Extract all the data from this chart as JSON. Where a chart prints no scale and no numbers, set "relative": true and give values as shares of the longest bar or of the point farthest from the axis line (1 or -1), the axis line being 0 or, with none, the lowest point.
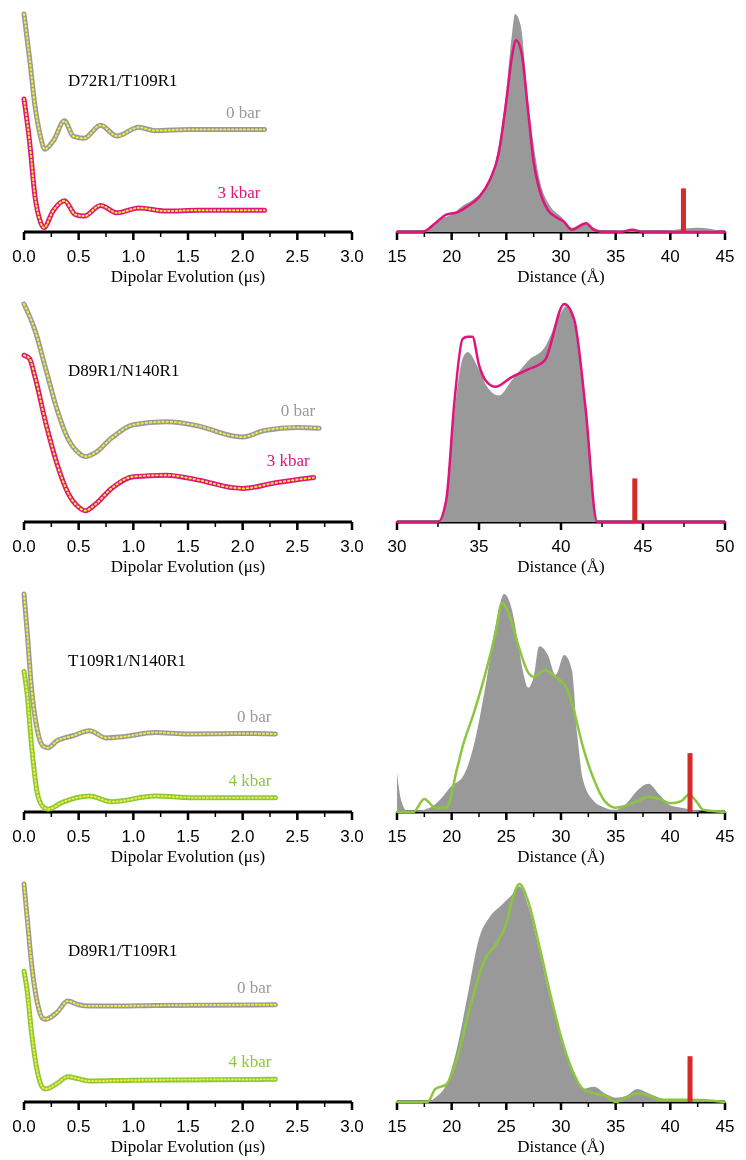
{
  "chart_data": [
    {
      "type": "line",
      "relative": true,
      "xlabel": "Dipolar Evolution (μs)",
      "annotations": [
        "D72R1/T109R1"
      ],
      "xlim": [
        0,
        3
      ],
      "xticks": [
        {
          "value": 0,
          "label": "0.0"
        },
        {
          "value": 0.25,
          "label": null
        },
        {
          "value": 0.5,
          "label": "0.5"
        },
        {
          "value": 0.75,
          "label": null
        },
        {
          "value": 1,
          "label": "1.0"
        },
        {
          "value": 1.25,
          "label": null
        },
        {
          "value": 1.5,
          "label": "1.5"
        },
        {
          "value": 1.75,
          "label": null
        },
        {
          "value": 2,
          "label": "2.0"
        },
        {
          "value": 2.25,
          "label": null
        },
        {
          "value": 2.5,
          "label": "2.5"
        },
        {
          "value": 2.75,
          "label": null
        },
        {
          "value": 3,
          "label": "3.0"
        }
      ],
      "series": [
        {
          "name": "0 bar",
          "color": "#9a9a9a",
          "x": [
            0,
            0.05,
            0.1,
            0.15,
            0.19,
            0.27,
            0.37,
            0.45,
            0.55,
            0.7,
            0.85,
            1.05,
            1.2,
            1.5,
            1.8,
            2.2
          ],
          "values": [
            1,
            0.8,
            0.58,
            0.44,
            0.38,
            0.42,
            0.51,
            0.44,
            0.43,
            0.49,
            0.44,
            0.48,
            0.465,
            0.47,
            0.47,
            0.47
          ]
        },
        {
          "color": "#eeee3a",
          "line_style": "dotted",
          "x": [
            0,
            0.05,
            0.1,
            0.15,
            0.19,
            0.27,
            0.37,
            0.45,
            0.55,
            0.7,
            0.85,
            1.05,
            1.2,
            1.5,
            1.8,
            2.2
          ],
          "values": [
            1,
            0.8,
            0.58,
            0.44,
            0.38,
            0.42,
            0.51,
            0.44,
            0.43,
            0.49,
            0.44,
            0.48,
            0.465,
            0.47,
            0.47,
            0.47
          ]
        },
        {
          "name": "3 kbar",
          "color": "#e0147c",
          "x": [
            0,
            0.05,
            0.1,
            0.15,
            0.18,
            0.27,
            0.37,
            0.47,
            0.55,
            0.7,
            0.85,
            1.05,
            1.3,
            1.6,
            2.2
          ],
          "values": [
            0.61,
            0.42,
            0.165,
            0.047,
            0.02,
            0.1,
            0.143,
            0.08,
            0.073,
            0.122,
            0.088,
            0.11,
            0.096,
            0.1,
            0.1
          ]
        },
        {
          "color": "#eeee3a",
          "line_style": "dotted",
          "x": [
            0,
            0.05,
            0.1,
            0.15,
            0.18,
            0.27,
            0.37,
            0.47,
            0.55,
            0.7,
            0.85,
            1.05,
            1.3,
            1.6,
            2.2
          ],
          "values": [
            0.61,
            0.42,
            0.165,
            0.047,
            0.02,
            0.1,
            0.143,
            0.08,
            0.073,
            0.122,
            0.088,
            0.11,
            0.096,
            0.1,
            0.1
          ]
        }
      ]
    },
    {
      "type": "area",
      "relative": true,
      "xlabel": "Distance (Å)",
      "xlim": [
        15,
        45
      ],
      "xticks": [
        15,
        {
          "value": 17.5,
          "label": null
        },
        20,
        {
          "value": 22.5,
          "label": null
        },
        25,
        {
          "value": 27.5,
          "label": null
        },
        30,
        {
          "value": 32.5,
          "label": null
        },
        35,
        {
          "value": 37.5,
          "label": null
        },
        40,
        {
          "value": 42.5,
          "label": null
        },
        45
      ],
      "series": [
        {
          "type": "area",
          "color": "#999999",
          "x": [
            15,
            17,
            18,
            19,
            20,
            21,
            22,
            23,
            24,
            25,
            25.5,
            25.8,
            26.3,
            27,
            27.5,
            28,
            29,
            30,
            31,
            32,
            33,
            34,
            36,
            37,
            38,
            42.5,
            45
          ],
          "values": [
            0,
            0,
            0.02,
            0.06,
            0.08,
            0.12,
            0.15,
            0.2,
            0.32,
            0.65,
            0.9,
            1,
            0.95,
            0.6,
            0.4,
            0.25,
            0.12,
            0.07,
            0.02,
            0.04,
            0.02,
            0,
            0.01,
            0.01,
            0,
            0.02,
            0
          ]
        },
        {
          "type": "line",
          "color": "#e0147c",
          "x": [
            15,
            17.3,
            18.5,
            19.5,
            20.5,
            21.5,
            22.5,
            23.5,
            24.3,
            25,
            25.5,
            25.9,
            26.4,
            27,
            27.5,
            28,
            28.8,
            29.5,
            30.2,
            31,
            32.3,
            33,
            34,
            35.5,
            36.5,
            37.5,
            45
          ],
          "values": [
            0,
            0,
            0.04,
            0.08,
            0.09,
            0.12,
            0.16,
            0.24,
            0.36,
            0.6,
            0.8,
            0.88,
            0.82,
            0.55,
            0.32,
            0.2,
            0.1,
            0.07,
            0.05,
            0.01,
            0.04,
            0.01,
            0,
            0,
            0.01,
            0,
            0
          ]
        },
        {
          "type": "bar",
          "color": "#d42a2a",
          "x": [
            41.2
          ],
          "values": [
            0.2
          ]
        }
      ]
    },
    {
      "type": "line",
      "relative": true,
      "xlabel": "Dipolar Evolution (μs)",
      "annotations": [
        "D89R1/N140R1"
      ],
      "xlim": [
        0,
        3
      ],
      "xticks": [
        {
          "value": 0,
          "label": "0.0"
        },
        {
          "value": 0.25,
          "label": null
        },
        {
          "value": 0.5,
          "label": "0.5"
        },
        {
          "value": 0.75,
          "label": null
        },
        {
          "value": 1,
          "label": "1.0"
        },
        {
          "value": 1.25,
          "label": null
        },
        {
          "value": 1.5,
          "label": "1.5"
        },
        {
          "value": 1.75,
          "label": null
        },
        {
          "value": 2,
          "label": "2.0"
        },
        {
          "value": 2.25,
          "label": null
        },
        {
          "value": 2.5,
          "label": "2.5"
        },
        {
          "value": 2.75,
          "label": null
        },
        {
          "value": 3,
          "label": "3.0"
        }
      ],
      "series": [
        {
          "name": "0 bar",
          "color": "#9a9a9a",
          "x": [
            0,
            0.1,
            0.2,
            0.3,
            0.4,
            0.5,
            0.56,
            0.65,
            0.8,
            1,
            1.3,
            1.6,
            1.9,
            2,
            2.2,
            2.5,
            2.7
          ],
          "values": [
            1,
            0.88,
            0.7,
            0.52,
            0.385,
            0.317,
            0.3,
            0.317,
            0.385,
            0.446,
            0.46,
            0.44,
            0.396,
            0.39,
            0.42,
            0.434,
            0.43
          ]
        },
        {
          "color": "#eeee3a",
          "line_style": "dotted",
          "x": [
            0,
            0.1,
            0.2,
            0.3,
            0.4,
            0.5,
            0.56,
            0.65,
            0.8,
            1,
            1.3,
            1.6,
            1.9,
            2,
            2.2,
            2.5,
            2.7
          ],
          "values": [
            1,
            0.88,
            0.7,
            0.52,
            0.385,
            0.317,
            0.3,
            0.317,
            0.385,
            0.446,
            0.46,
            0.44,
            0.396,
            0.39,
            0.42,
            0.434,
            0.43
          ]
        },
        {
          "name": "3 kbar",
          "color": "#e0147c",
          "x": [
            0,
            0.05,
            0.1,
            0.2,
            0.3,
            0.4,
            0.5,
            0.56,
            0.65,
            0.8,
            1,
            1.3,
            1.6,
            1.9,
            2,
            2.3,
            2.65
          ],
          "values": [
            0.765,
            0.75,
            0.667,
            0.452,
            0.27,
            0.136,
            0.068,
            0.052,
            0.08,
            0.154,
            0.208,
            0.215,
            0.192,
            0.158,
            0.154,
            0.18,
            0.204
          ]
        },
        {
          "color": "#eeee3a",
          "line_style": "dotted",
          "x": [
            0,
            0.05,
            0.1,
            0.2,
            0.3,
            0.4,
            0.5,
            0.56,
            0.65,
            0.8,
            1,
            1.3,
            1.6,
            1.9,
            2,
            2.3,
            2.65
          ],
          "values": [
            0.765,
            0.75,
            0.667,
            0.452,
            0.27,
            0.136,
            0.068,
            0.052,
            0.08,
            0.154,
            0.208,
            0.215,
            0.192,
            0.158,
            0.154,
            0.18,
            0.204
          ]
        }
      ]
    },
    {
      "type": "area",
      "relative": true,
      "xlabel": "Distance (Å)",
      "xlim": [
        30,
        50
      ],
      "xticks": [
        30,
        {
          "value": 32.5,
          "label": null
        },
        35,
        {
          "value": 37.5,
          "label": null
        },
        40,
        {
          "value": 42.5,
          "label": null
        },
        45,
        {
          "value": 47.5,
          "label": null
        },
        50
      ],
      "series": [
        {
          "type": "area",
          "color": "#999999",
          "x": [
            30,
            32.5,
            33,
            33.5,
            34,
            34.3,
            35,
            35.5,
            36.2,
            37,
            38,
            39,
            40,
            40.3,
            41,
            41.5,
            42,
            42.3,
            50
          ],
          "values": [
            0,
            0,
            0.1,
            0.5,
            0.75,
            0.78,
            0.7,
            0.62,
            0.58,
            0.65,
            0.74,
            0.8,
            0.96,
            0.99,
            0.85,
            0.5,
            0.1,
            0,
            0
          ]
        },
        {
          "type": "line",
          "color": "#e0147c",
          "x": [
            30,
            32.5,
            33,
            33.5,
            34,
            34.3,
            34.6,
            35,
            35.5,
            36,
            37,
            38,
            39,
            40.2,
            40.8,
            41.5,
            42.2,
            50
          ],
          "values": [
            0,
            0,
            0.1,
            0.55,
            0.84,
            0.85,
            0.85,
            0.72,
            0.64,
            0.62,
            0.665,
            0.7,
            0.74,
            1,
            0.93,
            0.52,
            0,
            0
          ]
        },
        {
          "type": "bar",
          "color": "#d42a2a",
          "x": [
            44.5
          ],
          "values": [
            0.2
          ]
        }
      ]
    },
    {
      "type": "line",
      "relative": true,
      "xlabel": "Dipolar Evolution (μs)",
      "annotations": [
        "T109R1/N140R1"
      ],
      "xlim": [
        0,
        3
      ],
      "xticks": [
        {
          "value": 0,
          "label": "0.0"
        },
        {
          "value": 0.25,
          "label": null
        },
        {
          "value": 0.5,
          "label": "0.5"
        },
        {
          "value": 0.75,
          "label": null
        },
        {
          "value": 1,
          "label": "1.0"
        },
        {
          "value": 1.25,
          "label": null
        },
        {
          "value": 1.5,
          "label": "1.5"
        },
        {
          "value": 1.75,
          "label": null
        },
        {
          "value": 2,
          "label": "2.0"
        },
        {
          "value": 2.25,
          "label": null
        },
        {
          "value": 2.5,
          "label": "2.5"
        },
        {
          "value": 2.75,
          "label": null
        },
        {
          "value": 3,
          "label": "3.0"
        }
      ],
      "series": [
        {
          "name": "0 bar",
          "color": "#9a9a9a",
          "x": [
            0,
            0.03,
            0.07,
            0.12,
            0.18,
            0.22,
            0.3,
            0.45,
            0.6,
            0.75,
            0.9,
            1.2,
            1.5,
            2,
            2.3
          ],
          "values": [
            1,
            0.82,
            0.56,
            0.38,
            0.3,
            0.295,
            0.326,
            0.35,
            0.373,
            0.34,
            0.345,
            0.365,
            0.358,
            0.36,
            0.358
          ]
        },
        {
          "color": "#eeee3a",
          "line_style": "dotted",
          "x": [
            0,
            0.03,
            0.07,
            0.12,
            0.18,
            0.22,
            0.3,
            0.45,
            0.6,
            0.75,
            0.9,
            1.2,
            1.5,
            2,
            2.3
          ],
          "values": [
            1,
            0.82,
            0.56,
            0.38,
            0.3,
            0.295,
            0.326,
            0.35,
            0.373,
            0.34,
            0.345,
            0.365,
            0.358,
            0.36,
            0.358
          ]
        },
        {
          "name": "4 kbar",
          "color": "#8cc63f",
          "x": [
            0,
            0.03,
            0.07,
            0.12,
            0.17,
            0.22,
            0.35,
            0.6,
            0.8,
            1.2,
            1.6,
            2.3
          ],
          "values": [
            0.645,
            0.535,
            0.3,
            0.09,
            0.026,
            0.013,
            0.044,
            0.073,
            0.047,
            0.073,
            0.065,
            0.065
          ]
        },
        {
          "color": "#eeee3a",
          "line_style": "dotted",
          "x": [
            0,
            0.03,
            0.07,
            0.12,
            0.17,
            0.22,
            0.35,
            0.6,
            0.8,
            1.2,
            1.6,
            2.3
          ],
          "values": [
            0.645,
            0.535,
            0.3,
            0.09,
            0.026,
            0.013,
            0.044,
            0.073,
            0.047,
            0.073,
            0.065,
            0.065
          ]
        }
      ]
    },
    {
      "type": "area",
      "relative": true,
      "xlabel": "Distance (Å)",
      "xlim": [
        15,
        45
      ],
      "xticks": [
        15,
        {
          "value": 17.5,
          "label": null
        },
        20,
        {
          "value": 22.5,
          "label": null
        },
        25,
        {
          "value": 27.5,
          "label": null
        },
        30,
        {
          "value": 32.5,
          "label": null
        },
        35,
        {
          "value": 37.5,
          "label": null
        },
        40,
        {
          "value": 42.5,
          "label": null
        },
        45
      ],
      "series": [
        {
          "type": "area",
          "color": "#999999",
          "x": [
            15,
            15.4,
            16,
            18,
            19,
            20,
            21,
            22,
            23,
            24,
            24.8,
            25.5,
            26,
            26.5,
            27,
            27.5,
            28,
            28.8,
            29.5,
            30.3,
            31,
            31.5,
            32,
            33,
            34,
            35,
            36,
            37,
            38,
            39,
            40,
            41,
            42,
            43,
            45
          ],
          "values": [
            0.18,
            0.05,
            0,
            0.02,
            0.06,
            0.12,
            0.16,
            0.3,
            0.55,
            0.85,
            1,
            0.93,
            0.8,
            0.65,
            0.57,
            0.62,
            0.76,
            0.72,
            0.63,
            0.72,
            0.65,
            0.35,
            0.15,
            0.05,
            0.02,
            0.01,
            0.04,
            0.1,
            0.13,
            0.08,
            0.03,
            0.02,
            0.01,
            0,
            0
          ]
        },
        {
          "type": "line",
          "color": "#8cc63f",
          "x": [
            15,
            16.5,
            17.5,
            18.5,
            19.5,
            20.5,
            21,
            22,
            23,
            24,
            24.6,
            25.3,
            26,
            27,
            27.5,
            28.5,
            29.5,
            30.5,
            31,
            32,
            33,
            34,
            35,
            36,
            37,
            38,
            39,
            40,
            41,
            41.7,
            42.5,
            43,
            45
          ],
          "values": [
            0,
            0,
            0.06,
            0.02,
            0.02,
            0.2,
            0.3,
            0.45,
            0.62,
            0.82,
            0.96,
            0.9,
            0.78,
            0.64,
            0.62,
            0.65,
            0.62,
            0.57,
            0.5,
            0.3,
            0.15,
            0.05,
            0.02,
            0.03,
            0.05,
            0.07,
            0.06,
            0.04,
            0.05,
            0.08,
            0.04,
            0.01,
            0
          ]
        },
        {
          "type": "bar",
          "color": "#d42a2a",
          "x": [
            41.8
          ],
          "values": [
            0.27
          ]
        }
      ]
    },
    {
      "type": "line",
      "relative": true,
      "xlabel": "Dipolar Evolution (μs)",
      "annotations": [
        "D89R1/T109R1"
      ],
      "xlim": [
        0,
        3
      ],
      "xticks": [
        {
          "value": 0,
          "label": "0.0"
        },
        {
          "value": 0.25,
          "label": null
        },
        {
          "value": 0.5,
          "label": "0.5"
        },
        {
          "value": 0.75,
          "label": null
        },
        {
          "value": 1,
          "label": "1.0"
        },
        {
          "value": 1.25,
          "label": null
        },
        {
          "value": 1.5,
          "label": "1.5"
        },
        {
          "value": 1.75,
          "label": null
        },
        {
          "value": 2,
          "label": "2.0"
        },
        {
          "value": 2.25,
          "label": null
        },
        {
          "value": 2.5,
          "label": "2.5"
        },
        {
          "value": 2.75,
          "label": null
        },
        {
          "value": 3,
          "label": "3.0"
        }
      ],
      "series": [
        {
          "name": "0 bar",
          "color": "#9a9a9a",
          "x": [
            0,
            0.03,
            0.07,
            0.12,
            0.17,
            0.2,
            0.3,
            0.4,
            0.5,
            0.6,
            0.8,
            1.2,
            2.3
          ],
          "values": [
            1,
            0.84,
            0.63,
            0.46,
            0.385,
            0.38,
            0.41,
            0.463,
            0.446,
            0.44,
            0.44,
            0.443,
            0.446
          ]
        },
        {
          "color": "#eeee3a",
          "line_style": "dotted",
          "x": [
            0,
            0.03,
            0.07,
            0.12,
            0.17,
            0.2,
            0.3,
            0.4,
            0.5,
            0.6,
            0.8,
            1.2,
            2.3
          ],
          "values": [
            1,
            0.84,
            0.63,
            0.46,
            0.385,
            0.38,
            0.41,
            0.463,
            0.446,
            0.44,
            0.44,
            0.443,
            0.446
          ]
        },
        {
          "name": "4 kbar",
          "color": "#8cc63f",
          "x": [
            0,
            0.03,
            0.07,
            0.12,
            0.17,
            0.2,
            0.3,
            0.4,
            0.5,
            0.6,
            1,
            2.3
          ],
          "values": [
            0.6,
            0.506,
            0.313,
            0.145,
            0.067,
            0.06,
            0.084,
            0.116,
            0.106,
            0.096,
            0.1,
            0.104
          ]
        },
        {
          "color": "#eeee3a",
          "line_style": "dotted",
          "x": [
            0,
            0.03,
            0.07,
            0.12,
            0.17,
            0.2,
            0.3,
            0.4,
            0.5,
            0.6,
            1,
            2.3
          ],
          "values": [
            0.6,
            0.506,
            0.313,
            0.145,
            0.067,
            0.06,
            0.084,
            0.116,
            0.106,
            0.096,
            0.1,
            0.104
          ]
        }
      ]
    },
    {
      "type": "area",
      "relative": true,
      "xlabel": "Distance (Å)",
      "xlim": [
        15,
        45
      ],
      "xticks": [
        15,
        {
          "value": 17.5,
          "label": null
        },
        20,
        {
          "value": 22.5,
          "label": null
        },
        25,
        {
          "value": 27.5,
          "label": null
        },
        30,
        {
          "value": 32.5,
          "label": null
        },
        35,
        {
          "value": 37.5,
          "label": null
        },
        40,
        {
          "value": 42.5,
          "label": null
        },
        45
      ],
      "series": [
        {
          "type": "area",
          "color": "#999999",
          "x": [
            15,
            17.5,
            18.5,
            19.5,
            20.5,
            21.5,
            22.5,
            23.5,
            24.5,
            25.5,
            26.2,
            27,
            28,
            29,
            30,
            31,
            32,
            33,
            34,
            35,
            36,
            37,
            38,
            39,
            40,
            42,
            45
          ],
          "values": [
            0,
            0,
            0.02,
            0.08,
            0.25,
            0.5,
            0.75,
            0.85,
            0.9,
            0.95,
            0.99,
            0.9,
            0.7,
            0.48,
            0.3,
            0.15,
            0.06,
            0.07,
            0.04,
            0.02,
            0.03,
            0.06,
            0.04,
            0.02,
            0.01,
            0.01,
            0
          ]
        },
        {
          "type": "line",
          "color": "#8cc63f",
          "x": [
            15,
            17.8,
            18.5,
            19.5,
            20.5,
            21.5,
            22.5,
            23,
            24,
            25,
            25.5,
            26.2,
            27,
            28,
            29,
            30,
            31,
            32,
            33,
            34,
            35,
            36,
            37,
            38,
            39,
            42,
            45
          ],
          "values": [
            0,
            0,
            0.06,
            0.08,
            0.2,
            0.4,
            0.58,
            0.65,
            0.72,
            0.82,
            0.92,
            1,
            0.92,
            0.72,
            0.5,
            0.3,
            0.15,
            0.06,
            0.04,
            0.03,
            0,
            0.02,
            0.04,
            0.03,
            0.01,
            0.01,
            0
          ]
        },
        {
          "type": "bar",
          "color": "#d42a2a",
          "x": [
            41.8
          ],
          "values": [
            0.21
          ]
        }
      ]
    }
  ]
}
